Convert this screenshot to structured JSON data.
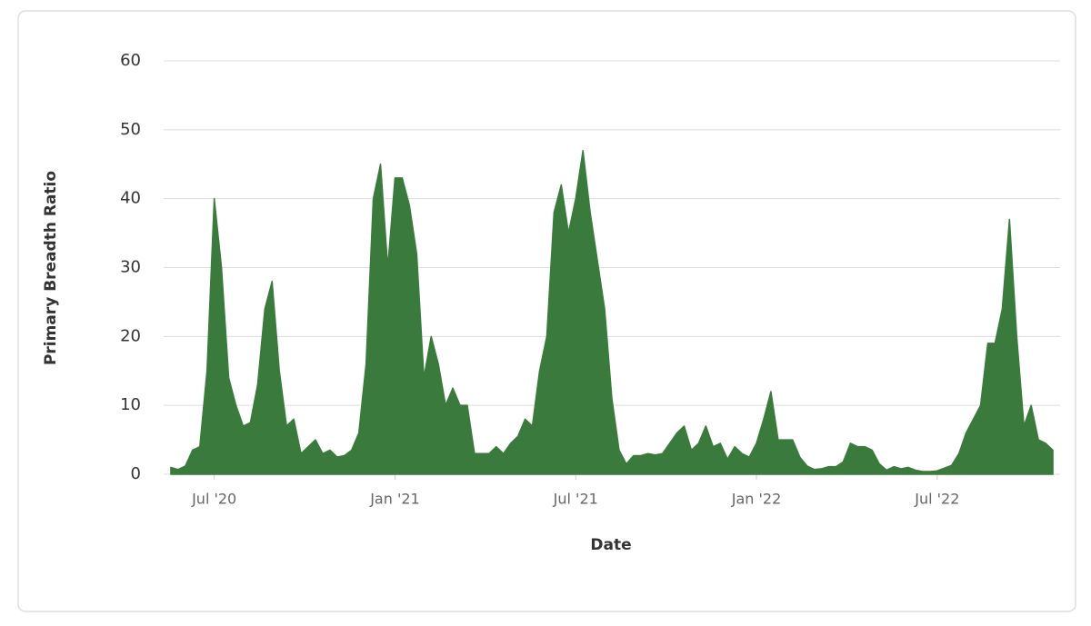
{
  "chart_data": {
    "type": "area",
    "y_label": "Primary Breadth Ratio",
    "x_label": "Date",
    "color": "#3a7a3c",
    "grid": true,
    "xlim": [
      2020.36,
      2022.84
    ],
    "ylim": [
      0,
      60
    ],
    "yticks": [
      0,
      10,
      20,
      30,
      40,
      50,
      60
    ],
    "xticks": [
      {
        "value": 2020.5,
        "label": "Jul '20"
      },
      {
        "value": 2021,
        "label": "Jan '21"
      },
      {
        "value": 2021.5,
        "label": "Jul '21"
      },
      {
        "value": 2022,
        "label": "Jan '22"
      },
      {
        "value": 2022.5,
        "label": "Jul '22"
      }
    ],
    "x": [
      2020.38,
      2020.4,
      2020.42,
      2020.44,
      2020.46,
      2020.48,
      2020.5,
      2020.52,
      2020.54,
      2020.56,
      2020.58,
      2020.6,
      2020.62,
      2020.64,
      2020.66,
      2020.68,
      2020.7,
      2020.72,
      2020.74,
      2020.76,
      2020.78,
      2020.8,
      2020.82,
      2020.84,
      2020.86,
      2020.88,
      2020.9,
      2020.92,
      2020.94,
      2020.96,
      2020.98,
      2021,
      2021.02,
      2021.04,
      2021.06,
      2021.08,
      2021.1,
      2021.12,
      2021.14,
      2021.16,
      2021.18,
      2021.2,
      2021.22,
      2021.24,
      2021.26,
      2021.28,
      2021.3,
      2021.32,
      2021.34,
      2021.36,
      2021.38,
      2021.4,
      2021.42,
      2021.44,
      2021.46,
      2021.48,
      2021.5,
      2021.52,
      2021.54,
      2021.56,
      2021.58,
      2021.6,
      2021.62,
      2021.64,
      2021.66,
      2021.68,
      2021.7,
      2021.72,
      2021.74,
      2021.76,
      2021.78,
      2021.8,
      2021.82,
      2021.84,
      2021.86,
      2021.88,
      2021.9,
      2021.92,
      2021.94,
      2021.96,
      2021.98,
      2022,
      2022.02,
      2022.04,
      2022.06,
      2022.08,
      2022.1,
      2022.12,
      2022.14,
      2022.16,
      2022.18,
      2022.2,
      2022.22,
      2022.24,
      2022.26,
      2022.28,
      2022.3,
      2022.32,
      2022.34,
      2022.36,
      2022.38,
      2022.4,
      2022.42,
      2022.44,
      2022.46,
      2022.48,
      2022.5,
      2022.52,
      2022.54,
      2022.56,
      2022.58,
      2022.6,
      2022.62,
      2022.64,
      2022.66,
      2022.68,
      2022.7,
      2022.72,
      2022.74,
      2022.76,
      2022.78,
      2022.8,
      2022.82
    ],
    "values": [
      1,
      0.7,
      1.2,
      3.5,
      4,
      15,
      40,
      30,
      14,
      10,
      7,
      7.5,
      13,
      24,
      28,
      15,
      7,
      8,
      3,
      4,
      5,
      3,
      3.5,
      2.5,
      2.7,
      3.5,
      6,
      16,
      40,
      45,
      30,
      43,
      43,
      39,
      32,
      14,
      20,
      16,
      10,
      12.5,
      10,
      10,
      3,
      3,
      3,
      4,
      3,
      4.5,
      5.5,
      8,
      7,
      15,
      20,
      38,
      42,
      35,
      40,
      47,
      38,
      31,
      24,
      11,
      3.5,
      1.5,
      2.7,
      2.7,
      3,
      2.8,
      3,
      4.5,
      6,
      7,
      3.5,
      4.5,
      7,
      4,
      4.5,
      2.2,
      4,
      3,
      2.5,
      4.5,
      8,
      12,
      5,
      5,
      5,
      2.5,
      1.2,
      0.7,
      0.8,
      1.1,
      1.1,
      1.8,
      4.5,
      4,
      4,
      3.5,
      1.5,
      0.6,
      1.1,
      0.8,
      1,
      0.6,
      0.4,
      0.4,
      0.5,
      0.9,
      1.3,
      3,
      6,
      8,
      10,
      19,
      19,
      24,
      37,
      20,
      7,
      10,
      5,
      4.5,
      3.5
    ]
  }
}
